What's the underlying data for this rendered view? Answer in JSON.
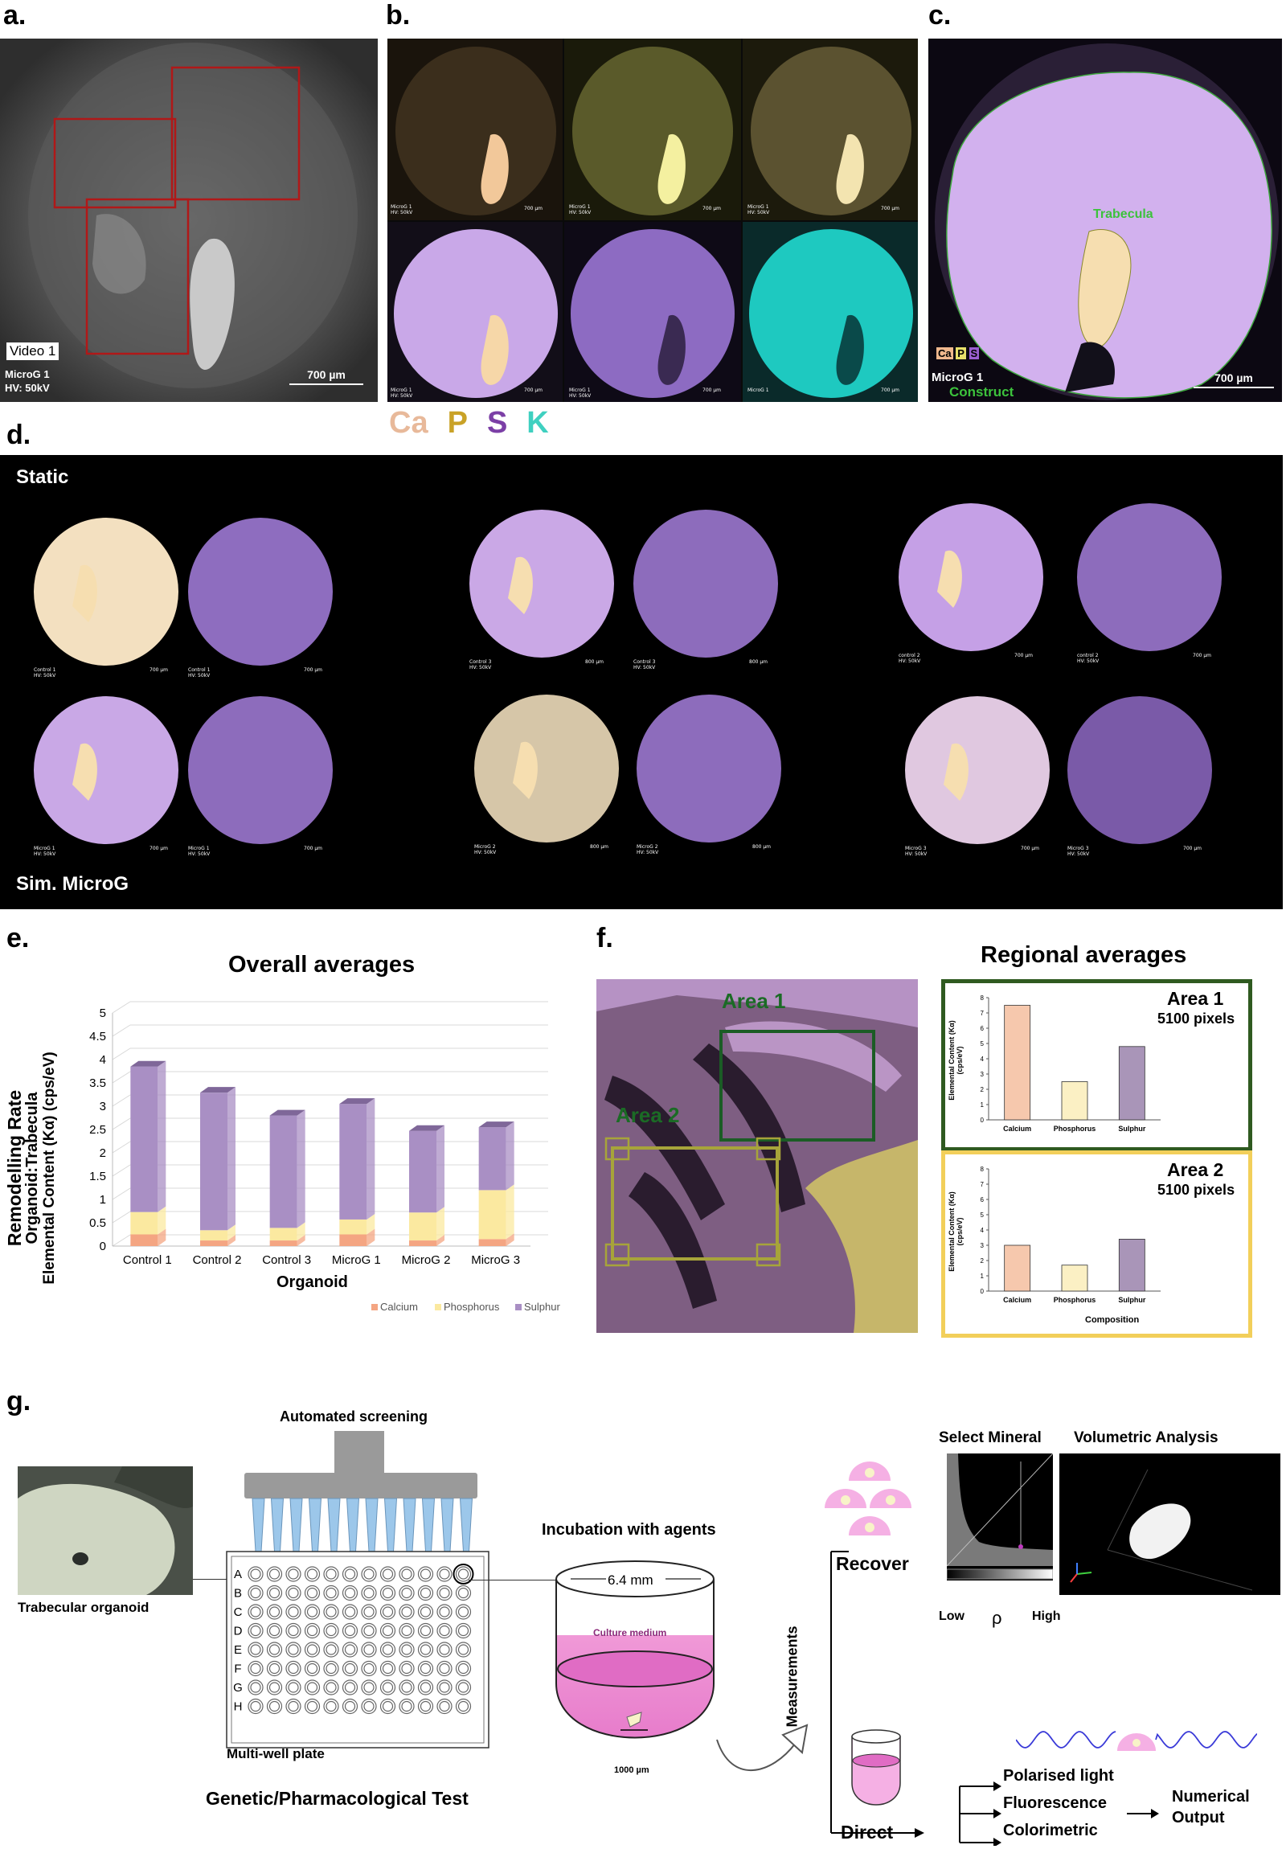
{
  "panel_labels": {
    "a": "a.",
    "b": "b.",
    "c": "c.",
    "d": "d.",
    "e": "e.",
    "f": "f.",
    "g": "g."
  },
  "panel_a": {
    "video": "Video 1",
    "line1": "MicroG 1",
    "line2": "HV: 50kV",
    "scale": "700 µm"
  },
  "panel_b": {
    "small_labels": [
      "MicroG 1",
      "MicroG 1",
      "MicroG 1",
      "MicroG 1",
      "MicroG 1",
      "MicroG 1"
    ],
    "small_hv": [
      "HV: 50kV",
      "HV: 50kV",
      "HV: 50kV",
      "HV: 50kV",
      "HV: 50kV",
      ""
    ],
    "small_scale": "700 µm"
  },
  "panel_c": {
    "trabecula": "Trabecula",
    "line1": "MicroG 1",
    "construct": "Construct",
    "scale": "700 µm",
    "legend": [
      "Ca",
      "P",
      "S"
    ]
  },
  "element_legend": [
    {
      "label": "Ca",
      "color": "#e8b99a"
    },
    {
      "label": "P",
      "color": "#c9a227"
    },
    {
      "label": "S",
      "color": "#7b3fa6"
    },
    {
      "label": "K",
      "color": "#3fd0c0"
    }
  ],
  "panel_d": {
    "static": "Static",
    "simmicrog": "Sim. MicroG",
    "tiles": [
      {
        "l": "Control 1",
        "s": "700 µm"
      },
      {
        "l": "Control 1",
        "s": "700 µm"
      },
      {
        "l": "Control 3",
        "s": "800 µm"
      },
      {
        "l": "Control 3",
        "s": "800 µm"
      },
      {
        "l": "control 2",
        "s": "700 µm"
      },
      {
        "l": "control 2",
        "s": "700 µm"
      },
      {
        "l": "MicroG 1",
        "s": "700 µm"
      },
      {
        "l": "MicroG 1",
        "s": "700 µm"
      },
      {
        "l": "MicroG 2",
        "s": "800 µm"
      },
      {
        "l": "MicroG 2",
        "s": "800 µm"
      },
      {
        "l": "MicroG 3",
        "s": "700 µm"
      },
      {
        "l": "MicroG 3",
        "s": "700 µm"
      }
    ],
    "hv": "HV: 50kV"
  },
  "chart_data": [
    {
      "type": "bar",
      "stacked": true,
      "title": "Overall averages",
      "ylabel_lines": [
        "Remodelling Rate",
        "Organoid:Trabecula",
        "Elemental Content (Kα) (cps/eV)"
      ],
      "xlabel": "Organoid",
      "ylim": [
        0,
        5
      ],
      "yticks": [
        "0",
        "0.5",
        "1",
        "1.5",
        "2",
        "2.5",
        "3",
        "3.5",
        "4",
        "4.5",
        "5"
      ],
      "categories": [
        "Control 1",
        "Control 2",
        "Control 3",
        "MicroG 1",
        "MicroG 2",
        "MicroG 3"
      ],
      "series": [
        {
          "name": "Calcium",
          "color": "#f4a582",
          "values": [
            0.25,
            0.12,
            0.12,
            0.25,
            0.12,
            0.15
          ]
        },
        {
          "name": "Phosphorus",
          "color": "#fbe9a0",
          "values": [
            0.48,
            0.22,
            0.27,
            0.32,
            0.6,
            1.05
          ]
        },
        {
          "name": "Sulphur",
          "color": "#a98fc4",
          "values": [
            3.12,
            2.95,
            2.41,
            2.48,
            1.75,
            1.35
          ]
        }
      ],
      "legend": "bottom-right"
    },
    {
      "type": "bar",
      "title": "Area 1",
      "subtitle": "5100 pixels",
      "ylabel": "Elemental Content (Kα) (cps/eV)",
      "ylim": [
        0,
        8
      ],
      "yticks": [
        "0",
        "1",
        "2",
        "3",
        "4",
        "5",
        "6",
        "7",
        "8"
      ],
      "categories": [
        "Calcium",
        "Phosphorus",
        "Sulphur"
      ],
      "values": [
        7.5,
        2.5,
        4.8
      ],
      "colors": [
        "#f6c8ad",
        "#fbf0c4",
        "#a995b8"
      ]
    },
    {
      "type": "bar",
      "title": "Area 2",
      "subtitle": "5100 pixels",
      "ylabel": "Elemental Content (Kα) (cps/eV)",
      "xlabel": "Composition",
      "ylim": [
        0,
        8
      ],
      "yticks": [
        "0",
        "1",
        "2",
        "3",
        "4",
        "5",
        "6",
        "7",
        "8"
      ],
      "categories": [
        "Calcium",
        "Phosphorus",
        "Sulphur"
      ],
      "values": [
        3.0,
        1.7,
        3.4
      ],
      "colors": [
        "#f6c8ad",
        "#fbf0c4",
        "#a995b8"
      ]
    }
  ],
  "panel_f": {
    "title": "Regional averages",
    "area1": "Area 1",
    "area2": "Area 2"
  },
  "panel_g": {
    "automated": "Automated screening",
    "trabecular": "Trabecular organoid",
    "multiwell": "Multi-well plate",
    "genetic": "Genetic/Pharmacological Test",
    "incubation": "Incubation with agents",
    "diameter": "6.4 mm",
    "medium": "Culture medium",
    "micron": "1000 µm",
    "measurements": "Measurements",
    "recover": "Recover",
    "direct": "Direct",
    "select_mineral": "Select Mineral",
    "volumetric": "Volumetric Analysis",
    "low": "Low",
    "rho": "ρ",
    "high": "High",
    "polarised": "Polarised light",
    "fluorescence": "Fluorescence",
    "colorimetric": "Colorimetric",
    "numerical": "Numerical",
    "output": "Output",
    "rows": [
      "A",
      "B",
      "C",
      "D",
      "E",
      "F",
      "G",
      "H"
    ]
  }
}
